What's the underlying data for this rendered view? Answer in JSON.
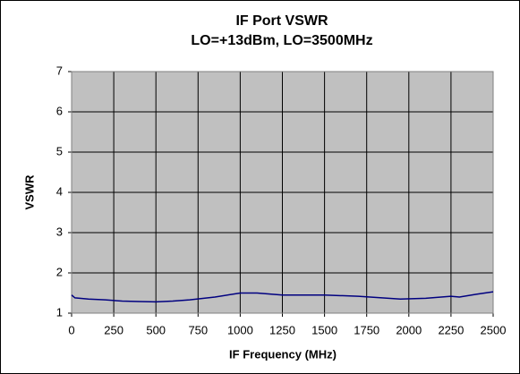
{
  "chart_data": {
    "type": "line",
    "title": "IF Port VSWR",
    "subtitle": "LO=+13dBm, LO=3500MHz",
    "x_label": "IF Frequency  (MHz)",
    "y_label": "VSWR",
    "x": [
      0,
      20,
      100,
      200,
      300,
      400,
      500,
      600,
      700,
      850,
      1000,
      1100,
      1250,
      1500,
      1700,
      1950,
      2100,
      2250,
      2300,
      2400,
      2500
    ],
    "series": [
      {
        "name": "VSWR",
        "color": "#000080",
        "values": [
          1.45,
          1.38,
          1.35,
          1.33,
          1.3,
          1.29,
          1.28,
          1.3,
          1.33,
          1.4,
          1.5,
          1.5,
          1.45,
          1.45,
          1.42,
          1.35,
          1.37,
          1.42,
          1.4,
          1.47,
          1.53
        ]
      }
    ],
    "xlim": [
      0,
      2500
    ],
    "xticks": [
      0,
      250,
      500,
      750,
      1000,
      1250,
      1500,
      1750,
      2000,
      2250,
      2500
    ],
    "ylim": [
      1,
      7
    ],
    "yticks": [
      1,
      2,
      3,
      4,
      5,
      6,
      7
    ],
    "grid": true,
    "plot_background": "#c0c0c0"
  }
}
